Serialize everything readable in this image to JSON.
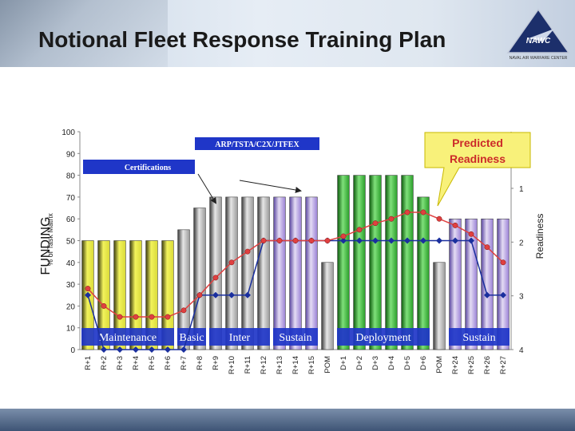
{
  "slide": {
    "title": "Notional Fleet Response Training Plan",
    "logo_text": "NAWC",
    "logo_subtext": "NAVAL AIR WARFARE CENTER"
  },
  "colors": {
    "bar_gray": "#c0c0c0",
    "bar_gray_dark": "#4a4a4a",
    "bar_green": "#2a9e2a",
    "bar_green_light": "#b8e6b0",
    "bar_purple": "#9a80d6",
    "bar_purple_light": "#e4dcf4",
    "bar_yellow": "#e9ea4b",
    "bar_yellow_dark": "#3d3d10",
    "readiness_line": "#e04040",
    "blue_line": "#1a2f9e",
    "callout_yellow": "#f8f17a",
    "band_blue": "#1f36c8"
  },
  "chart_data": {
    "type": "bar",
    "ylabel": "% of Task Matrix",
    "ylabel_overlay": "FUNDING",
    "y2label": "Readiness",
    "ylim": [
      0,
      100
    ],
    "y_ticks": [
      0,
      10,
      20,
      30,
      40,
      50,
      60,
      70,
      80,
      90,
      100
    ],
    "y2_ticks": [
      "1",
      "2",
      "3",
      "4"
    ],
    "categories": [
      "R+1",
      "R+2",
      "R+3",
      "R+4",
      "R+5",
      "R+6",
      "R+7",
      "R+8",
      "R+9",
      "R+10",
      "R+11",
      "R+12",
      "R+13",
      "R+14",
      "R+15",
      "POM",
      "D+1",
      "D+2",
      "D+3",
      "D+4",
      "D+5",
      "D+6",
      "POM",
      "R+24",
      "R+25",
      "R+26",
      "R+27"
    ],
    "series": [
      {
        "values": [
          50,
          50,
          50,
          50,
          50,
          50,
          55,
          65,
          70,
          70,
          70,
          70,
          70,
          70,
          70,
          40,
          80,
          80,
          80,
          80,
          80,
          70,
          40,
          60,
          60,
          60,
          60
        ]
      },
      {
        "values": [
          28,
          20,
          15,
          15,
          15,
          15,
          18,
          25,
          33,
          40,
          45,
          50,
          50,
          50,
          50,
          50,
          52,
          55,
          58,
          60,
          63,
          63,
          60,
          57,
          53,
          47,
          40
        ]
      },
      {
        "values": [
          25,
          0,
          0,
          0,
          0,
          0,
          0,
          25,
          25,
          25,
          25,
          50,
          50,
          50,
          50,
          50,
          50,
          50,
          50,
          50,
          50,
          50,
          50,
          50,
          50,
          25,
          25
        ]
      }
    ],
    "bar_color_groups": [
      "yellow",
      "yellow",
      "yellow",
      "yellow",
      "yellow",
      "yellow",
      "gray",
      "gray",
      "gray",
      "gray",
      "gray",
      "gray",
      "purple",
      "purple",
      "purple",
      "gray",
      "green",
      "green",
      "green",
      "green",
      "green",
      "green",
      "gray",
      "purple",
      "purple",
      "purple",
      "purple"
    ],
    "phase_labels": [
      "Maintenance",
      "Basic",
      "Inter",
      "Sustain",
      "Deployment",
      "Sustain"
    ],
    "annotations": {
      "top_banner": "ARP/TSTA/C2X/JTFEX",
      "certifications": "Certifications",
      "callout": "Predicted Readiness"
    },
    "legend": "none",
    "grid": false
  }
}
